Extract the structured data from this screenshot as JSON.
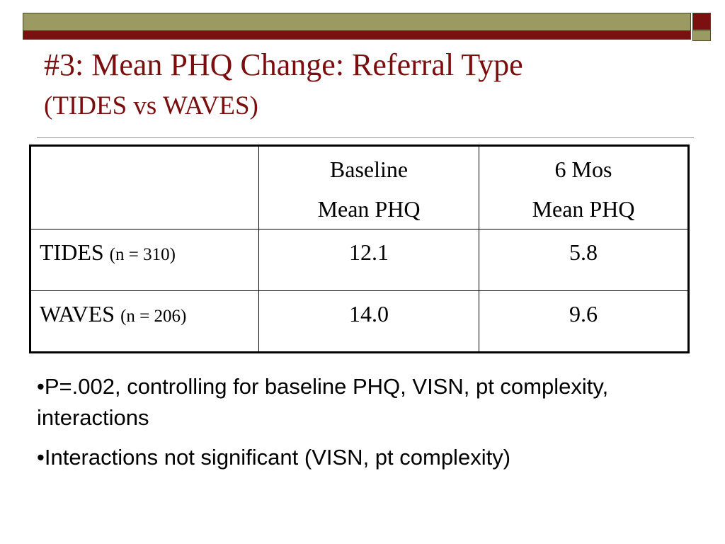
{
  "theme": {
    "olive": "#9a9a62",
    "maroon": "#7a1010",
    "text": "#7a0e0e",
    "table_text": "#000000"
  },
  "slide": {
    "title": "#3: Mean PHQ Change: Referral Type",
    "subtitle": "(TIDES vs WAVES)"
  },
  "table": {
    "headers": [
      {
        "line1": "",
        "line2": ""
      },
      {
        "line1": "Baseline",
        "line2": "Mean PHQ"
      },
      {
        "line1": "6 Mos",
        "line2": "Mean PHQ"
      }
    ],
    "rows": [
      {
        "label": "TIDES",
        "n": "(n = 310)",
        "baseline": "12.1",
        "six_mos": "5.8"
      },
      {
        "label": "WAVES",
        "n": "(n = 206)",
        "baseline": "14.0",
        "six_mos": "9.6"
      }
    ]
  },
  "bullets": [
    "•P=.002, controlling for baseline PHQ, VISN, pt complexity, interactions",
    "•Interactions not significant (VISN, pt complexity)"
  ]
}
